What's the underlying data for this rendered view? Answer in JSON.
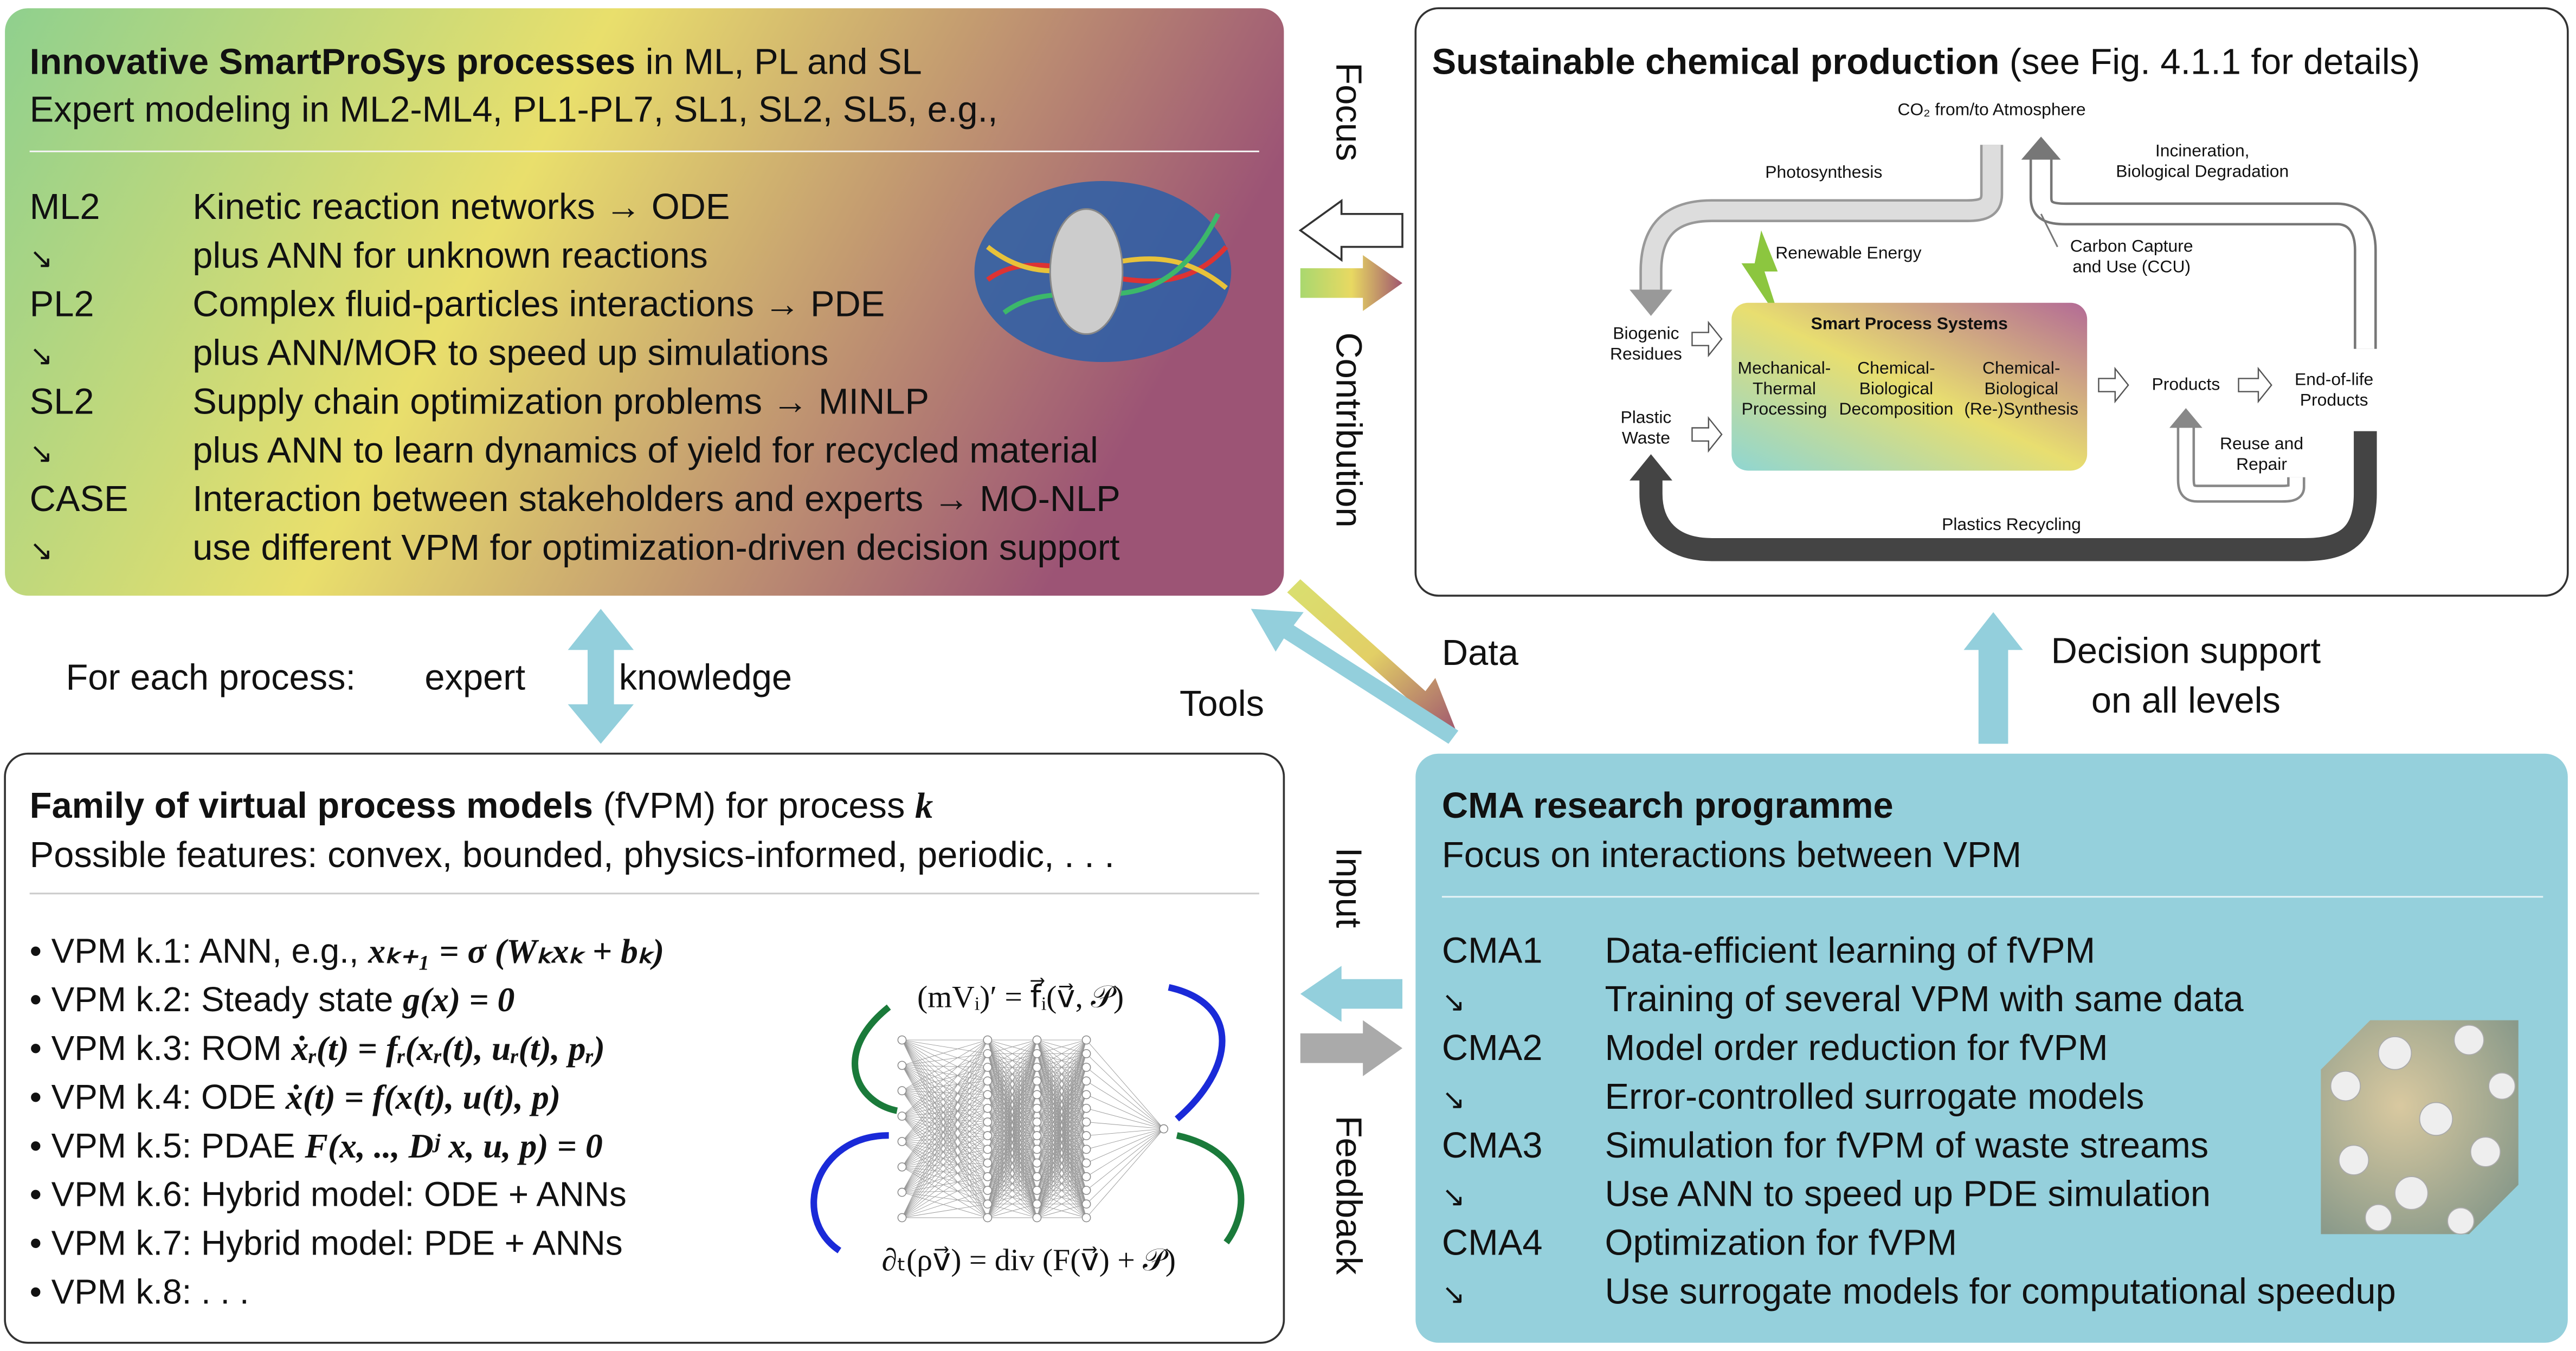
{
  "top_left": {
    "title_bold": "Innovative SmartProSys processes",
    "title_rest": " in ML, PL and SL",
    "subtitle": "Expert modeling in ML2-ML4, PL1-PL7, SL1, SL2, SL5, e.g.,",
    "rows": [
      [
        "ML2",
        "Kinetic reaction networks → ODE"
      ],
      [
        "↘",
        "plus ANN for unknown reactions"
      ],
      [
        "PL2",
        "Complex fluid-particles interactions → PDE"
      ],
      [
        "↘",
        "plus ANN/MOR to speed up simulations"
      ],
      [
        "SL2",
        "Supply chain optimization problems → MINLP"
      ],
      [
        "↘",
        "plus ANN to learn dynamics of yield for recycled material"
      ],
      [
        "CASE",
        "Interaction between stakeholders and experts → MO-NLP"
      ],
      [
        "↘",
        "use different VPM for optimization-driven decision support"
      ]
    ]
  },
  "top_right": {
    "title_bold": "Sustainable chemical production",
    "title_rest": " (see Fig. 4.1.1 for details)",
    "labels": {
      "co2": "CO₂ from/to Atmosphere",
      "photosynthesis": "Photosynthesis",
      "incineration": [
        "Incineration,",
        "Biological Degradation"
      ],
      "ccu": [
        "Carbon Capture",
        "and Use (CCU)"
      ],
      "renewable": "Renewable Energy",
      "sps": "Smart Process Systems",
      "biogenic": [
        "Biogenic",
        "Residues"
      ],
      "plastic": [
        "Plastic",
        "Waste"
      ],
      "mech": [
        "Mechanical-",
        "Thermal",
        "Processing"
      ],
      "decomp": [
        "Chemical-",
        "Biological",
        "Decomposition"
      ],
      "synth": [
        "Chemical-",
        "Biological",
        "(Re-)Synthesis"
      ],
      "products": "Products",
      "eol": [
        "End-of-life",
        "Products"
      ],
      "reuse": [
        "Reuse and",
        "Repair"
      ],
      "recycling": "Plastics Recycling"
    }
  },
  "bottom_left": {
    "title_bold": "Family of virtual process models",
    "title_rest": " (fVPM) for process ",
    "title_k": "k",
    "subtitle": "Possible features: convex, bounded, physics-informed, periodic, . . .",
    "items": [
      [
        "• VPM k.1: ANN, e.g., ",
        "xₖ₊₁ = σ (Wₖxₖ + bₖ)"
      ],
      [
        "• VPM k.2: Steady state ",
        "g(x) = 0"
      ],
      [
        "• VPM k.3: ROM ",
        "ẋᵣ(t) = fᵣ(xᵣ(t), uᵣ(t), pᵣ)"
      ],
      [
        "• VPM k.4: ODE ",
        "ẋ(t) = f(x(t), u(t), p)"
      ],
      [
        "• VPM k.5: PDAE ",
        "F(x, .., Dʲ x, u, p) = 0"
      ],
      [
        "• VPM k.6: Hybrid model: ODE + ANNs"
      ],
      [
        "• VPM k.7: Hybrid model: PDE + ANNs"
      ],
      [
        "• VPM k.8: . . ."
      ]
    ],
    "eq_top": "(mVᵢ)′ = f⃗ᵢ(v⃗, 𝒫)",
    "eq_bottom": "∂ₜ(ρv⃗) = div (F(v⃗) + 𝒫)"
  },
  "bottom_right": {
    "title": "CMA research programme",
    "subtitle": "Focus on interactions between VPM",
    "rows": [
      [
        "CMA1",
        "Data-efficient learning of fVPM"
      ],
      [
        "↘",
        "Training of several VPM with same data"
      ],
      [
        "CMA2",
        "Model order reduction for fVPM"
      ],
      [
        "↘",
        "Error-controlled surrogate models"
      ],
      [
        "CMA3",
        "Simulation for fVPM of waste streams"
      ],
      [
        "↘",
        "Use ANN to speed up PDE simulation"
      ],
      [
        "CMA4",
        "Optimization for fVPM"
      ],
      [
        "↘",
        "Use surrogate models for computational speedup"
      ]
    ]
  },
  "connectors": {
    "focus": "Focus",
    "contribution": "Contribution",
    "data": "Data",
    "tools": "Tools",
    "decision": [
      "Decision support",
      "on all levels"
    ],
    "input": "Input",
    "feedback": "Feedback",
    "for_each": "For each process:",
    "expert": "expert",
    "knowledge": "knowledge"
  }
}
